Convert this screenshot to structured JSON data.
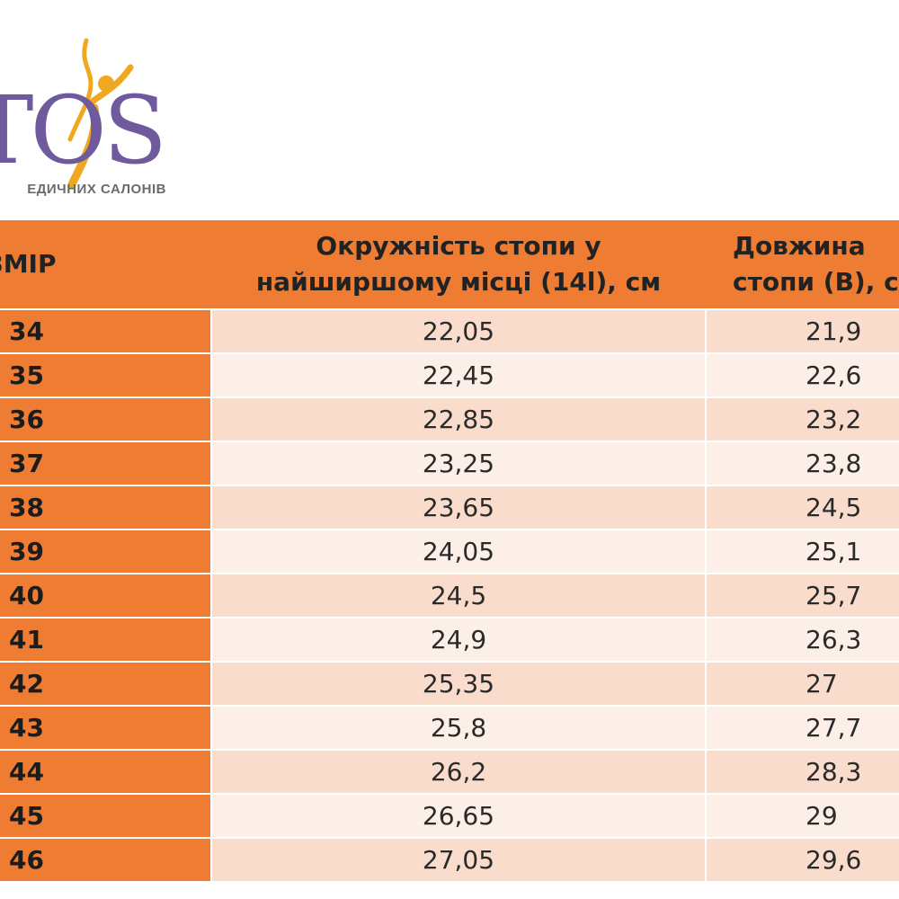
{
  "logo": {
    "letters": "TOS",
    "tagline": "ЕДИЧНИХ САЛОНІВ"
  },
  "colors": {
    "header_orange": "#ee7d33",
    "row_dark": "#f9dccb",
    "row_light": "#fcefe7",
    "logo_purple": "#6f5a9e",
    "logo_gold": "#f0a820"
  },
  "table": {
    "headers": {
      "size": "ОЗМІР",
      "girth_line1": "Окружність стопи у",
      "girth_line2": "найширшому місці (14l), см",
      "length_line1": "Довжина",
      "length_line2": "стопи (B), см"
    },
    "rows": [
      {
        "size": "34",
        "girth": "22,05",
        "length": "21,9"
      },
      {
        "size": "35",
        "girth": "22,45",
        "length": "22,6"
      },
      {
        "size": "36",
        "girth": "22,85",
        "length": "23,2"
      },
      {
        "size": "37",
        "girth": "23,25",
        "length": "23,8"
      },
      {
        "size": "38",
        "girth": "23,65",
        "length": "24,5"
      },
      {
        "size": "39",
        "girth": "24,05",
        "length": "25,1"
      },
      {
        "size": "40",
        "girth": "24,5",
        "length": "25,7"
      },
      {
        "size": "41",
        "girth": "24,9",
        "length": "26,3"
      },
      {
        "size": "42",
        "girth": "25,35",
        "length": "27"
      },
      {
        "size": "43",
        "girth": "25,8",
        "length": "27,7"
      },
      {
        "size": "44",
        "girth": "26,2",
        "length": "28,3"
      },
      {
        "size": "45",
        "girth": "26,65",
        "length": "29"
      },
      {
        "size": "46",
        "girth": "27,05",
        "length": "29,6"
      }
    ]
  }
}
